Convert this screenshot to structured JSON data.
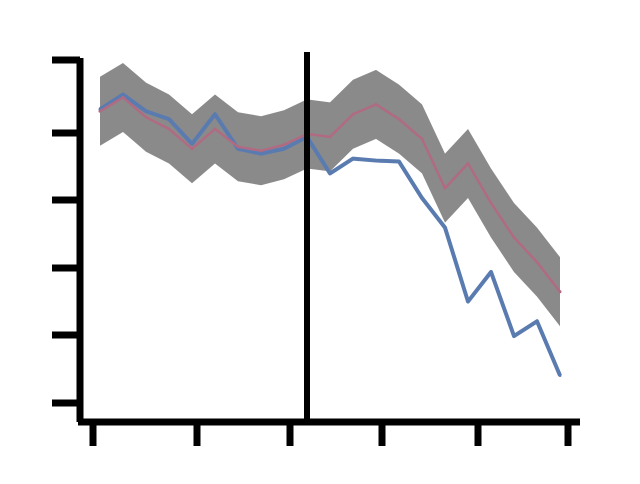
{
  "chart_data": {
    "type": "line",
    "title": "",
    "xlabel": "",
    "ylabel": "",
    "x": [
      0,
      5,
      10,
      15,
      20,
      25,
      30,
      35,
      40,
      45,
      50,
      55,
      60,
      65,
      70,
      75,
      80,
      85,
      90,
      95,
      100
    ],
    "series": [
      {
        "name": "",
        "color": "#5a7bb0",
        "values": [
          120,
          135,
          118,
          110,
          85,
          115,
          80,
          75,
          80,
          92,
          55,
          70,
          68,
          67,
          30,
          0,
          -75,
          -45,
          -110,
          -95,
          -150
        ]
      },
      {
        "name": "",
        "color": "#b06b82",
        "values": [
          118,
          132,
          112,
          100,
          80,
          100,
          82,
          78,
          84,
          95,
          92,
          115,
          125,
          110,
          90,
          40,
          65,
          25,
          -10,
          -35,
          -65
        ]
      }
    ],
    "band": {
      "color": "#8a8a8a",
      "half_width": 35
    },
    "vline_x": 45,
    "grid": false,
    "legend": "none"
  }
}
